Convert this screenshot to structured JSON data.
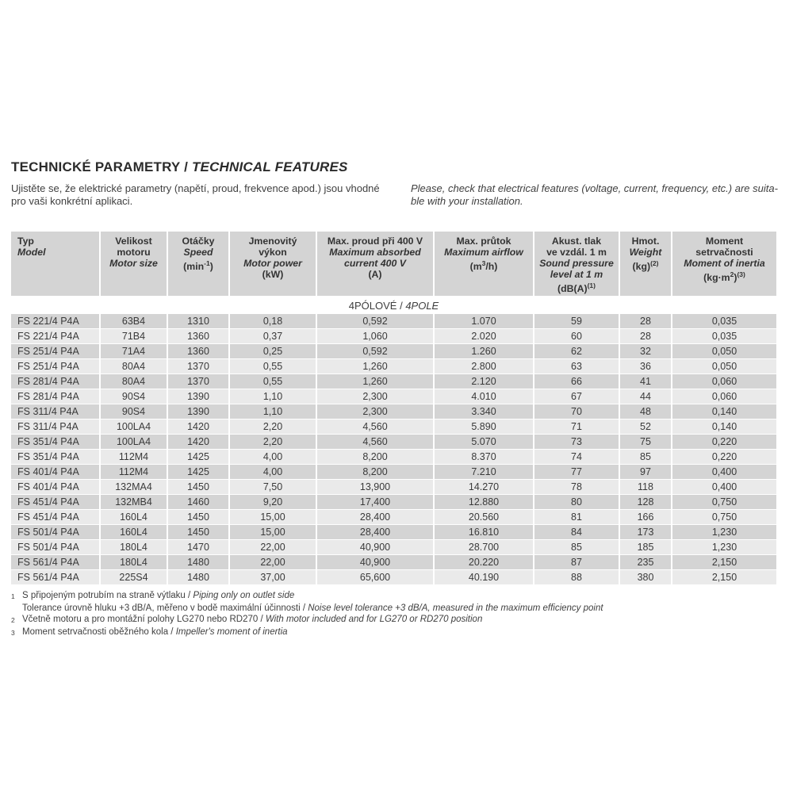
{
  "page": {
    "title": {
      "cs": "TECHNICKÉ PARAMETRY /",
      "en": "TECHNICAL FEATURES"
    },
    "intro": {
      "cs_lines": [
        "Ujistěte se, že elektrické parametry (napětí, proud, frekvence apod.) jsou vhodné",
        "pro vaši konkrétní aplikaci."
      ],
      "en_lines": [
        "Please, check that electrical features (voltage, current, frequency, etc.) are suita-",
        "ble with your installation."
      ]
    }
  },
  "colors": {
    "header_bg": "#d4d4d4",
    "row_dark": "#d4d4d4",
    "row_light": "#eaeaea",
    "text": "#3a3a3a"
  },
  "table": {
    "section_label": {
      "cs": "4PÓLOVÉ /",
      "en": "4POLE"
    },
    "columns": [
      {
        "key": "model",
        "cs": [
          "Typ"
        ],
        "en": [
          "Model"
        ],
        "unit": [],
        "align": "left"
      },
      {
        "key": "motor-size",
        "cs": [
          "Velikost",
          "motoru"
        ],
        "en": [
          "Motor size"
        ],
        "unit": []
      },
      {
        "key": "speed",
        "cs": [
          "Otáčky"
        ],
        "en": [
          "Speed"
        ],
        "unit": [
          {
            "t": "(min"
          },
          {
            "t": "-1",
            "sup": true
          },
          {
            "t": ")"
          }
        ]
      },
      {
        "key": "power",
        "cs": [
          "Jmenovitý",
          "výkon"
        ],
        "en": [
          "Motor power"
        ],
        "unit": [
          {
            "t": "(kW)"
          }
        ]
      },
      {
        "key": "current",
        "cs": [
          "Max. proud při 400 V"
        ],
        "en": [
          "Maximum absorbed",
          "current 400 V"
        ],
        "unit": [
          {
            "t": "(A)"
          }
        ]
      },
      {
        "key": "airflow",
        "cs": [
          "Max. průtok"
        ],
        "en": [
          "Maximum airflow"
        ],
        "unit": [
          {
            "t": "(m"
          },
          {
            "t": "3",
            "sup": true
          },
          {
            "t": "/h)"
          }
        ]
      },
      {
        "key": "sound",
        "cs": [
          "Akust. tlak",
          "ve vzdál. 1 m"
        ],
        "en": [
          "Sound pressure",
          "level at 1 m"
        ],
        "unit": [
          {
            "t": "(dB(A)"
          },
          {
            "t": "(1)",
            "sup": true
          }
        ]
      },
      {
        "key": "weight",
        "cs": [
          "Hmot."
        ],
        "en": [
          "Weight"
        ],
        "unit": [
          {
            "t": "(kg)"
          },
          {
            "t": "(2)",
            "sup": true
          }
        ]
      },
      {
        "key": "inertia",
        "cs": [
          "Moment",
          "setrvačnosti"
        ],
        "en": [
          "Moment of inertia"
        ],
        "unit": [
          {
            "t": "(kg·m"
          },
          {
            "t": "2",
            "sup": true
          },
          {
            "t": ")"
          },
          {
            "t": "(3)",
            "sup": true
          }
        ]
      }
    ],
    "rows": [
      [
        "FS 221/4 P4A",
        "63B4",
        "1310",
        "0,18",
        "0,592",
        "1.070",
        "59",
        "28",
        "0,035"
      ],
      [
        "FS 221/4 P4A",
        "71B4",
        "1360",
        "0,37",
        "1,060",
        "2.020",
        "60",
        "28",
        "0,035"
      ],
      [
        "FS 251/4 P4A",
        "71A4",
        "1360",
        "0,25",
        "0,592",
        "1.260",
        "62",
        "32",
        "0,050"
      ],
      [
        "FS 251/4 P4A",
        "80A4",
        "1370",
        "0,55",
        "1,260",
        "2.800",
        "63",
        "36",
        "0,050"
      ],
      [
        "FS 281/4 P4A",
        "80A4",
        "1370",
        "0,55",
        "1,260",
        "2.120",
        "66",
        "41",
        "0,060"
      ],
      [
        "FS 281/4 P4A",
        "90S4",
        "1390",
        "1,10",
        "2,300",
        "4.010",
        "67",
        "44",
        "0,060"
      ],
      [
        "FS 311/4 P4A",
        "90S4",
        "1390",
        "1,10",
        "2,300",
        "3.340",
        "70",
        "48",
        "0,140"
      ],
      [
        "FS 311/4 P4A",
        "100LA4",
        "1420",
        "2,20",
        "4,560",
        "5.890",
        "71",
        "52",
        "0,140"
      ],
      [
        "FS 351/4 P4A",
        "100LA4",
        "1420",
        "2,20",
        "4,560",
        "5.070",
        "73",
        "75",
        "0,220"
      ],
      [
        "FS 351/4 P4A",
        "112M4",
        "1425",
        "4,00",
        "8,200",
        "8.370",
        "74",
        "85",
        "0,220"
      ],
      [
        "FS 401/4 P4A",
        "112M4",
        "1425",
        "4,00",
        "8,200",
        "7.210",
        "77",
        "97",
        "0,400"
      ],
      [
        "FS 401/4 P4A",
        "132MA4",
        "1450",
        "7,50",
        "13,900",
        "14.270",
        "78",
        "118",
        "0,400"
      ],
      [
        "FS 451/4 P4A",
        "132MB4",
        "1460",
        "9,20",
        "17,400",
        "12.880",
        "80",
        "128",
        "0,750"
      ],
      [
        "FS 451/4 P4A",
        "160L4",
        "1450",
        "15,00",
        "28,400",
        "20.560",
        "81",
        "166",
        "0,750"
      ],
      [
        "FS 501/4 P4A",
        "160L4",
        "1450",
        "15,00",
        "28,400",
        "16.810",
        "84",
        "173",
        "1,230"
      ],
      [
        "FS 501/4 P4A",
        "180L4",
        "1470",
        "22,00",
        "40,900",
        "28.700",
        "85",
        "185",
        "1,230"
      ],
      [
        "FS 561/4 P4A",
        "180L4",
        "1480",
        "22,00",
        "40,900",
        "20.220",
        "87",
        "235",
        "2,150"
      ],
      [
        "FS 561/4 P4A",
        "225S4",
        "1480",
        "37,00",
        "65,600",
        "40.190",
        "88",
        "380",
        "2,150"
      ]
    ]
  },
  "footnotes": [
    {
      "sup": "1",
      "cs": "S připojeným potrubím na straně výtlaku /",
      "en": "Piping only on outlet side"
    },
    {
      "sup": "",
      "cs": "Tolerance úrovně hluku +3 dB/A, měřeno v bodě maximální účinnosti /",
      "en": "Noise level tolerance +3 dB/A, measured in the maximum efficiency point"
    },
    {
      "sup": "2",
      "cs": "Včetně motoru a pro montážní polohy LG270 nebo RD270 /",
      "en": "With motor included and for LG270 or RD270 position"
    },
    {
      "sup": "3",
      "cs": "Moment setrvačnosti oběžného kola /",
      "en": "Impeller's moment of inertia"
    }
  ]
}
